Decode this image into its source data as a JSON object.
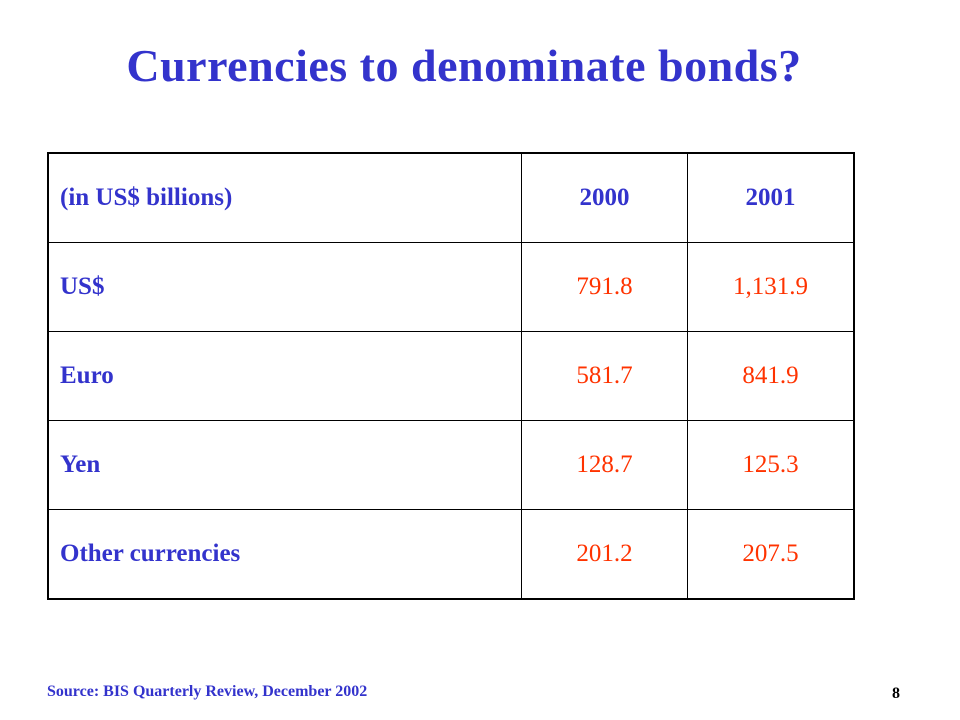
{
  "slide": {
    "title": "Currencies to denominate bonds?",
    "source": "Source: BIS Quarterly Review, December 2002",
    "page_number": "8",
    "colors": {
      "title": "#3333cc",
      "values": "#ff3300",
      "border": "#000000"
    }
  },
  "table": {
    "header": {
      "label": "(in US$ billions)",
      "years": [
        "2000",
        "2001"
      ]
    },
    "rows": [
      {
        "label": "US$",
        "values": [
          "791.8",
          "1,131.9"
        ]
      },
      {
        "label": "Euro",
        "values": [
          "581.7",
          "841.9"
        ]
      },
      {
        "label": "Yen",
        "values": [
          "128.7",
          "125.3"
        ]
      },
      {
        "label": "Other currencies",
        "values": [
          "201.2",
          "207.5"
        ]
      }
    ]
  }
}
